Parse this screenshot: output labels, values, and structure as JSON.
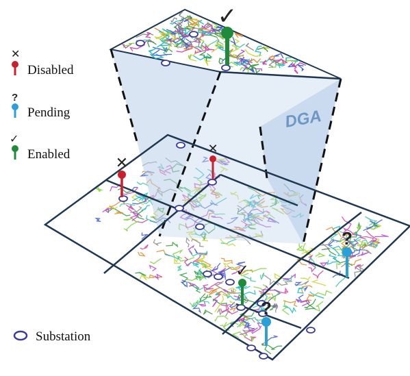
{
  "legend": {
    "disabled": {
      "label": "Disabled",
      "symbol": "✕",
      "color": "#c8202c"
    },
    "pending": {
      "label": "Pending",
      "symbol": "?",
      "color": "#2a9fd8"
    },
    "enabled": {
      "label": "Enabled",
      "symbol": "✓",
      "color": "#1f8a3a"
    },
    "substation": {
      "label": "Substation",
      "color": "#3a3aa0"
    }
  },
  "overlay_label": "DGA",
  "colors": {
    "grid_line": "#1e3752",
    "volume_fill": "#b9cfe8",
    "feeders": [
      "#3b5bd6",
      "#19b8c9",
      "#7fd13b",
      "#b23fd1",
      "#2e9b3a",
      "#e08a2a",
      "#3fc7a0",
      "#8a8a8a",
      "#d43fa7",
      "#c9d52a"
    ]
  },
  "markers": [
    {
      "status": "enabled",
      "location": "DGA top"
    },
    {
      "status": "disabled",
      "location": "left tile"
    },
    {
      "status": "disabled",
      "location": "upper-middle tile"
    },
    {
      "status": "pending",
      "location": "right tile"
    },
    {
      "status": "enabled",
      "location": "bottom-center tile"
    },
    {
      "status": "pending",
      "location": "bottom-center tile"
    }
  ]
}
